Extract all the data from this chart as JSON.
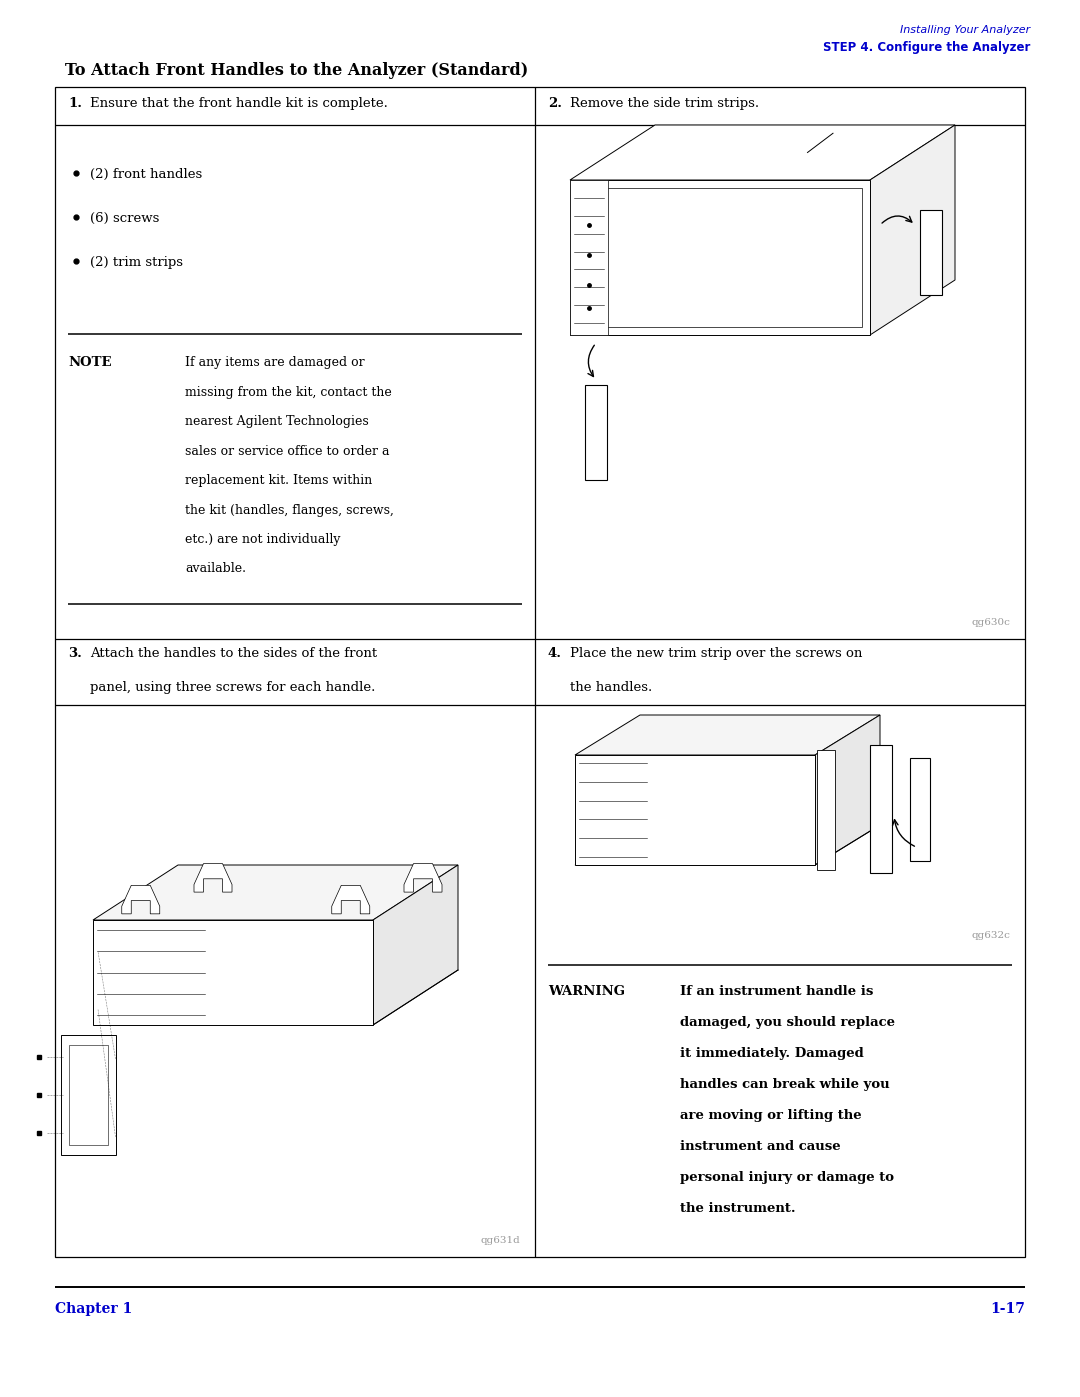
{
  "header_line1": "Installing Your Analyzer",
  "header_line2": "STEP 4. Configure the Analyzer",
  "title": "To Attach Front Handles to the Analyzer (Standard)",
  "header_color": "#0000CC",
  "title_color": "#000000",
  "cell1_bold": "1.",
  "cell1_text": " Ensure that the front handle kit is complete.",
  "cell2_bold": "2.",
  "cell2_text": " Remove the side trim strips.",
  "cell3_bold": "3.",
  "cell3_text": " Attach the handles to the sides of the front",
  "cell3_text2": "panel, using three screws for each handle.",
  "cell4_bold": "4.",
  "cell4_text": " Place the new trim strip over the screws on",
  "cell4_text2": "the handles.",
  "bullet_items": [
    "(2) front handles",
    "(6) screws",
    "(2) trim strips"
  ],
  "note_label": "NOTE",
  "note_text": "If any items are damaged or\nmissing from the kit, contact the\nnearest Agilent Technologies\nsales or service office to order a\nreplacement kit. Items within\nthe kit (handles, flanges, screws,\netc.) are not individually\navailable.",
  "warning_label": "WARNING",
  "warning_text": "If an instrument handle is\ndamaged, you should replace\nit immediately. Damaged\nhandles can break while you\nare moving or lifting the\ninstrument and cause\npersonal injury or damage to\nthe instrument.",
  "fig1_label": "qg630c",
  "fig2_label": "qg631d",
  "fig3_label": "qg632c",
  "footer_left": "Chapter 1",
  "footer_right": "1-17",
  "footer_color": "#0000CC",
  "bg_color": "#FFFFFF",
  "table_border_color": "#000000",
  "text_color": "#000000",
  "gray_color": "#999999"
}
